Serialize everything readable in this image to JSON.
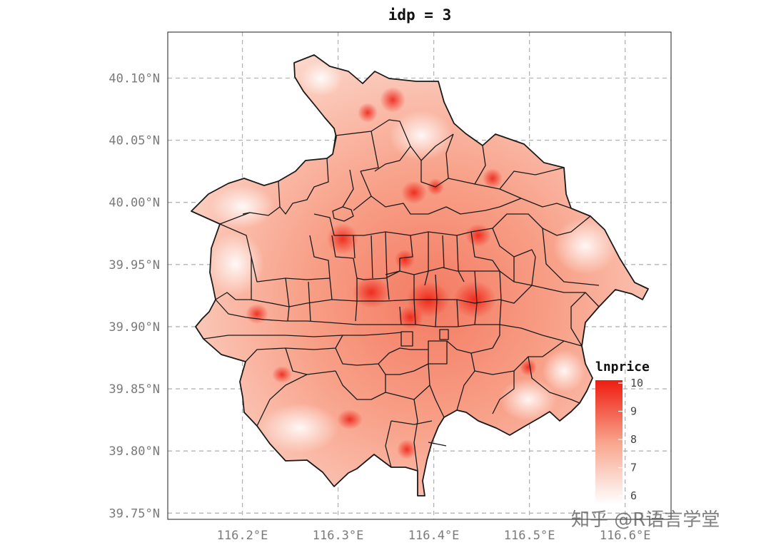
{
  "map": {
    "title": "idp = 3",
    "x_ticks": [
      {
        "value": 116.2,
        "label": "116.2°E"
      },
      {
        "value": 116.3,
        "label": "116.3°E"
      },
      {
        "value": 116.4,
        "label": "116.4°E"
      },
      {
        "value": 116.5,
        "label": "116.5°E"
      },
      {
        "value": 116.6,
        "label": "116.6°E"
      }
    ],
    "y_ticks": [
      {
        "value": 40.1,
        "label": "40.10°N"
      },
      {
        "value": 40.05,
        "label": "40.05°N"
      },
      {
        "value": 40.0,
        "label": "40.00°N"
      },
      {
        "value": 39.95,
        "label": "39.95°N"
      },
      {
        "value": 39.9,
        "label": "39.90°N"
      },
      {
        "value": 39.85,
        "label": "39.85°N"
      },
      {
        "value": 39.8,
        "label": "39.80°N"
      },
      {
        "value": 39.75,
        "label": "39.75°N"
      }
    ],
    "x_range": [
      116.122,
      116.648
    ],
    "y_range": [
      39.745,
      40.137
    ],
    "grid": true,
    "fill_variable": "lnprice",
    "colors": {
      "low": "#ffffff",
      "high": "#ee1c10",
      "border": "#1a1a1a",
      "grid": "#b4b4b4"
    }
  },
  "legend": {
    "title": "lnprice",
    "placement": "bottom-right",
    "range": [
      5.7,
      10.1
    ],
    "ticks": [
      10,
      9,
      8,
      7,
      6
    ]
  },
  "watermark": {
    "text": "知乎 @R语言学堂"
  }
}
